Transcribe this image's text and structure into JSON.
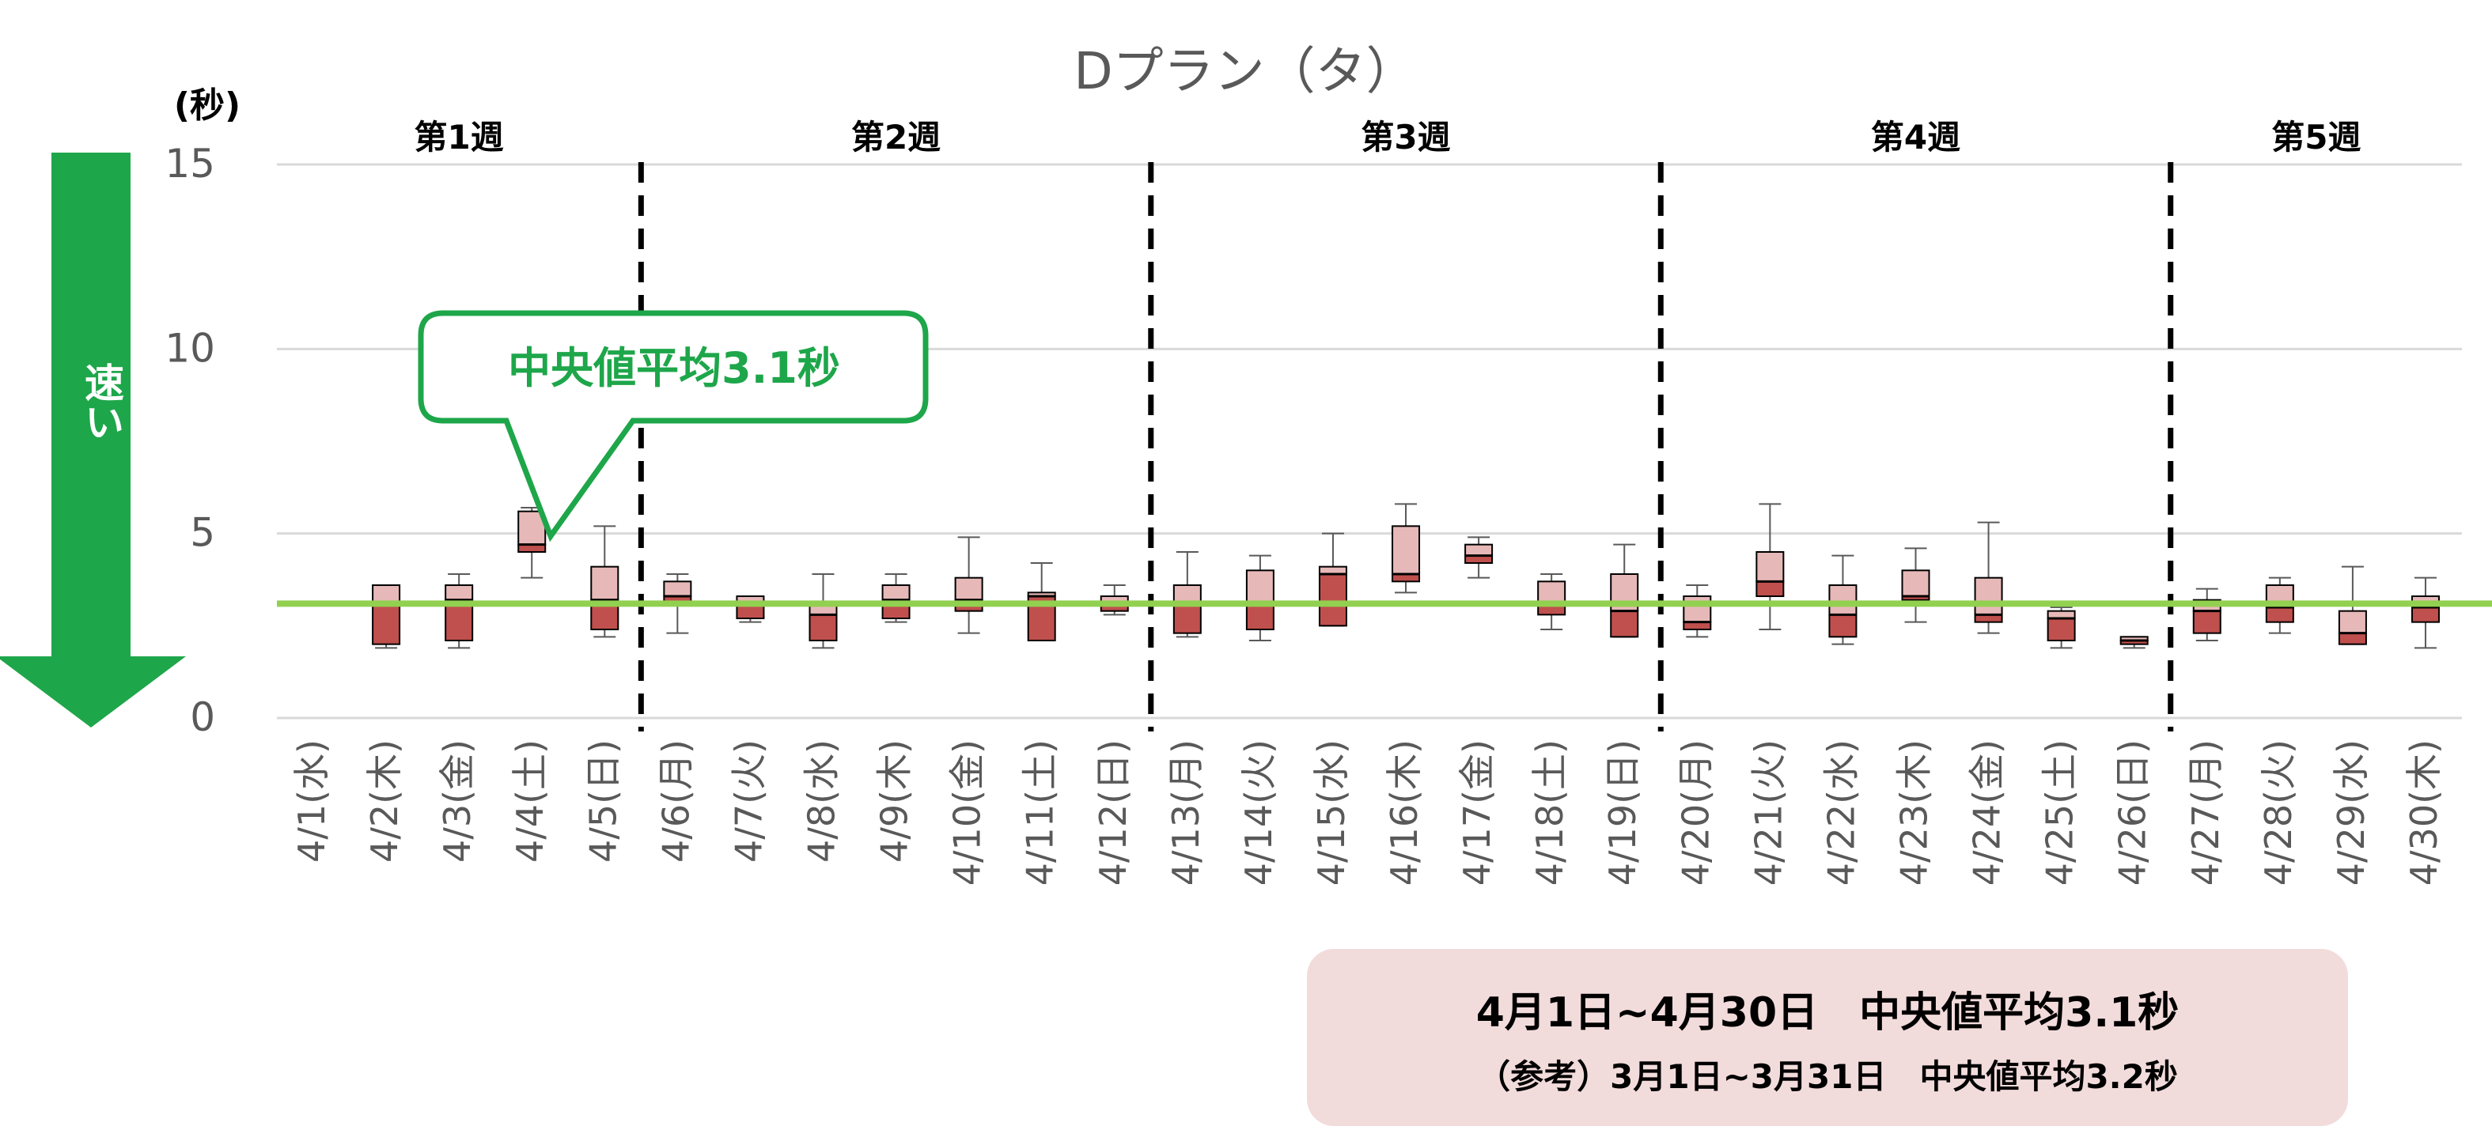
{
  "chart_data": {
    "type": "boxplot",
    "title": "Dプラン（タ）",
    "ylabel": "(秒)",
    "ylim": [
      0,
      15
    ],
    "yticks": [
      0,
      5,
      10,
      15
    ],
    "grid": true,
    "categories": [
      "4/1(水)",
      "4/2(木)",
      "4/3(金)",
      "4/4(土)",
      "4/5(日)",
      "4/6(月)",
      "4/7(火)",
      "4/8(水)",
      "4/9(木)",
      "4/10(金)",
      "4/11(土)",
      "4/12(日)",
      "4/13(月)",
      "4/14(火)",
      "4/15(水)",
      "4/16(木)",
      "4/17(金)",
      "4/18(土)",
      "4/19(日)",
      "4/20(月)",
      "4/21(火)",
      "4/22(水)",
      "4/23(木)",
      "4/24(金)",
      "4/25(土)",
      "4/26(日)",
      "4/27(月)",
      "4/28(火)",
      "4/29(水)",
      "4/30(木)"
    ],
    "boxes": [
      null,
      {
        "min": 1.9,
        "q1": 2.0,
        "median": 3.1,
        "q3": 3.6,
        "max": 3.6
      },
      {
        "min": 1.9,
        "q1": 2.1,
        "median": 3.2,
        "q3": 3.6,
        "max": 3.9
      },
      {
        "min": 3.8,
        "q1": 4.5,
        "median": 4.7,
        "q3": 5.6,
        "max": 5.7
      },
      {
        "min": 2.2,
        "q1": 2.4,
        "median": 3.2,
        "q3": 4.1,
        "max": 5.2
      },
      {
        "min": 2.3,
        "q1": 3.1,
        "median": 3.3,
        "q3": 3.7,
        "max": 3.9
      },
      {
        "min": 2.6,
        "q1": 2.7,
        "median": 3.1,
        "q3": 3.3,
        "max": 3.3
      },
      {
        "min": 1.9,
        "q1": 2.1,
        "median": 2.8,
        "q3": 3.1,
        "max": 3.9
      },
      {
        "min": 2.6,
        "q1": 2.7,
        "median": 3.2,
        "q3": 3.6,
        "max": 3.9
      },
      {
        "min": 2.3,
        "q1": 2.9,
        "median": 3.2,
        "q3": 3.8,
        "max": 4.9
      },
      {
        "min": 2.1,
        "q1": 2.1,
        "median": 3.3,
        "q3": 3.4,
        "max": 4.2
      },
      {
        "min": 2.8,
        "q1": 2.9,
        "median": 3.1,
        "q3": 3.3,
        "max": 3.6
      },
      {
        "min": 2.2,
        "q1": 2.3,
        "median": 3.1,
        "q3": 3.6,
        "max": 4.5
      },
      {
        "min": 2.1,
        "q1": 2.4,
        "median": 3.1,
        "q3": 4.0,
        "max": 4.4
      },
      {
        "min": 2.5,
        "q1": 2.5,
        "median": 3.9,
        "q3": 4.1,
        "max": 5.0
      },
      {
        "min": 3.4,
        "q1": 3.7,
        "median": 3.9,
        "q3": 5.2,
        "max": 5.8
      },
      {
        "min": 3.8,
        "q1": 4.2,
        "median": 4.4,
        "q3": 4.7,
        "max": 4.9
      },
      {
        "min": 2.4,
        "q1": 2.8,
        "median": 3.1,
        "q3": 3.7,
        "max": 3.9
      },
      {
        "min": 2.2,
        "q1": 2.2,
        "median": 2.9,
        "q3": 3.9,
        "max": 4.7
      },
      {
        "min": 2.2,
        "q1": 2.4,
        "median": 2.6,
        "q3": 3.3,
        "max": 3.6
      },
      {
        "min": 2.4,
        "q1": 3.3,
        "median": 3.7,
        "q3": 4.5,
        "max": 5.8
      },
      {
        "min": 2.0,
        "q1": 2.2,
        "median": 2.8,
        "q3": 3.6,
        "max": 4.4
      },
      {
        "min": 2.6,
        "q1": 3.2,
        "median": 3.3,
        "q3": 4.0,
        "max": 4.6
      },
      {
        "min": 2.3,
        "q1": 2.6,
        "median": 2.8,
        "q3": 3.8,
        "max": 5.3
      },
      {
        "min": 1.9,
        "q1": 2.1,
        "median": 2.7,
        "q3": 2.9,
        "max": 3.0
      },
      {
        "min": 1.9,
        "q1": 2.0,
        "median": 2.1,
        "q3": 2.2,
        "max": 2.2
      },
      {
        "min": 2.1,
        "q1": 2.3,
        "median": 2.9,
        "q3": 3.2,
        "max": 3.5
      },
      {
        "min": 2.3,
        "q1": 2.6,
        "median": 3.0,
        "q3": 3.6,
        "max": 3.8
      },
      {
        "min": 2.0,
        "q1": 2.0,
        "median": 2.3,
        "q3": 2.9,
        "max": 4.1
      },
      {
        "min": 1.9,
        "q1": 2.6,
        "median": 3.0,
        "q3": 3.3,
        "max": 3.8
      }
    ],
    "average_median_line": 3.1,
    "weeks": [
      {
        "label": "第1週",
        "from": 0,
        "to": 4
      },
      {
        "label": "第2週",
        "from": 5,
        "to": 11
      },
      {
        "label": "第3週",
        "from": 12,
        "to": 18
      },
      {
        "label": "第4週",
        "from": 19,
        "to": 25
      },
      {
        "label": "第5週",
        "from": 26,
        "to": 29
      }
    ],
    "week_dividers_after": [
      4,
      11,
      18,
      25
    ]
  },
  "callout": {
    "text": "中央値平均3.1秒"
  },
  "speed_arrow": {
    "label": "速い"
  },
  "summary": {
    "main": "4月1日~4月30日　中央値平均3.1秒",
    "reference": "（参考）3月1日~3月31日　中央値平均3.2秒"
  },
  "colors": {
    "box_upper": "#e6b9b8",
    "box_lower": "#c0504d",
    "average_line": "#92d050",
    "accent_green": "#1ea64a",
    "summary_bg": "#f2dcdb",
    "grid": "#d9d9d9",
    "axis_text": "#595959"
  }
}
